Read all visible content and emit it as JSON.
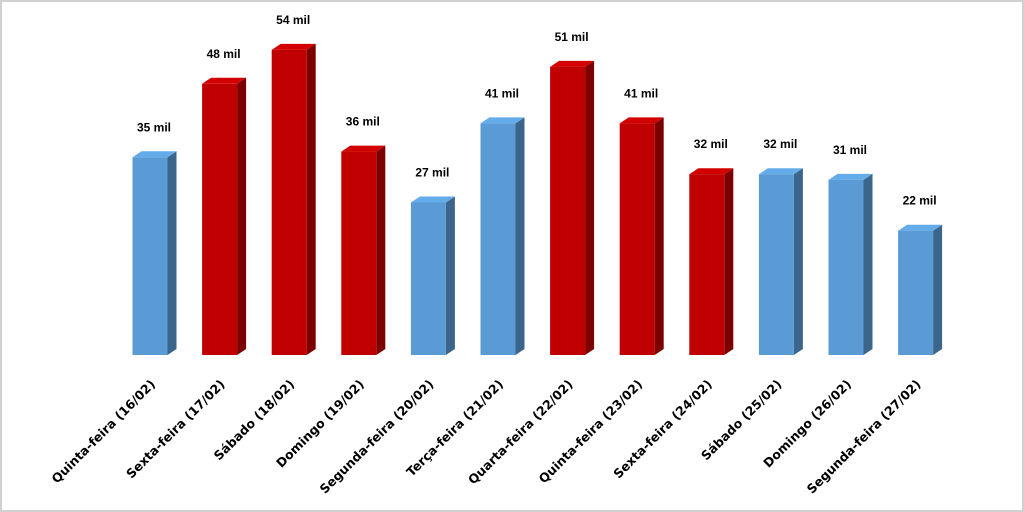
{
  "chart_data": {
    "type": "bar3d",
    "categories": [
      "Quinta-feira (16/02)",
      "Sexta-feira (17/02)",
      "Sábado (18/02)",
      "Domingo (19/02)",
      "Segunda-feira (20/02)",
      "Terça-feira (21/02)",
      "Quarta-feira (22/02)",
      "Quinta-feira (23/02)",
      "Sexta-feira (24/02)",
      "Sábado (25/02)",
      "Domingo (26/02)",
      "Segunda-feira (27/02)"
    ],
    "values": [
      35,
      48,
      54,
      36,
      27,
      41,
      51,
      41,
      32,
      32,
      31,
      22
    ],
    "value_labels": [
      "35 mil",
      "48 mil",
      "54 mil",
      "36 mil",
      "27 mil",
      "41 mil",
      "51 mil",
      "41 mil",
      "32 mil",
      "32 mil",
      "31 mil",
      "22 mil"
    ],
    "colors": [
      "#5b9bd5",
      "#c00000",
      "#c00000",
      "#c00000",
      "#5b9bd5",
      "#5b9bd5",
      "#c00000",
      "#c00000",
      "#c00000",
      "#5b9bd5",
      "#5b9bd5",
      "#5b9bd5"
    ]
  }
}
